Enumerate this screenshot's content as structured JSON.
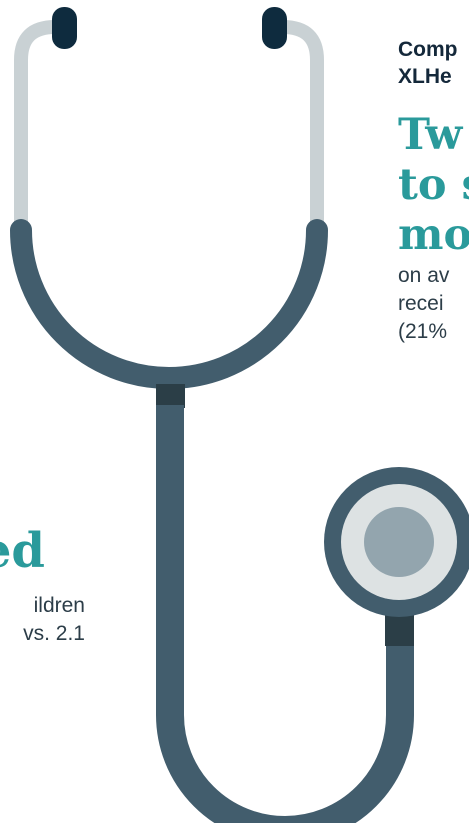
{
  "colors": {
    "ear_tips": "#0e2b3e",
    "ear_tubes": "#c9d1d4",
    "tubing": "#425d6d",
    "joint": "#2b3e47",
    "chestpiece_ring": "#dde2e3",
    "chestpiece_center": "#93a5ae",
    "headline": "#2a9a9b"
  },
  "right_panel": {
    "intro_lines": [
      "Comp",
      "XLHe"
    ],
    "headline_lines": [
      "Tw",
      "to s",
      "mo"
    ],
    "body_lines": [
      "on av",
      "recei",
      "(21%"
    ]
  },
  "left_panel": {
    "stat_word": "ed",
    "body_lines": [
      "ildren",
      "vs. 2.1"
    ]
  }
}
